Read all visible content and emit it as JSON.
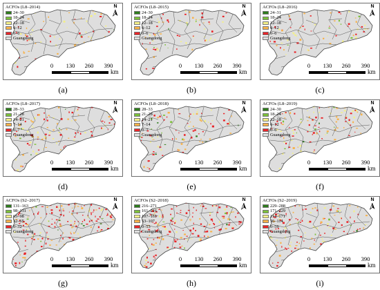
{
  "unit": "km",
  "scale_ticks": [
    "0",
    "130",
    "260",
    "390"
  ],
  "north_label": "N",
  "colors": {
    "class1": "#2e7d1c",
    "class2": "#7cc03a",
    "class3": "#f3ef88",
    "class4": "#f7b24a",
    "class5": "#e8262a",
    "guangdong": "#dedede",
    "border": "#555555"
  },
  "panels": [
    {
      "caption": "(a)",
      "title": "ACFOs (L8–2014)",
      "classes": [
        "24–30",
        "18–24",
        "12–18",
        "6–12",
        "0–6"
      ],
      "base": "Guangdong",
      "red_density": 0.3
    },
    {
      "caption": "(b)",
      "title": "ACFOs (L8–2015)",
      "classes": [
        "24–30",
        "18–24",
        "12–18",
        "6–12",
        "0–6"
      ],
      "base": "Guangdong",
      "red_density": 0.3
    },
    {
      "caption": "(c)",
      "title": "ACFOs (L8–2016)",
      "classes": [
        "24–31",
        "18–24",
        "12–18",
        "6–12",
        "0–6"
      ],
      "base": "Guangdong",
      "red_density": 0.3
    },
    {
      "caption": "(d)",
      "title": "ACFOs (L8–2017)",
      "classes": [
        "28–33",
        "21–28",
        "14–21",
        "7–14",
        "0–7"
      ],
      "base": "Guangdong",
      "red_density": 0.45
    },
    {
      "caption": "(e)",
      "title": "ACFOs (L8–2018)",
      "classes": [
        "28–33",
        "21–28",
        "14–21",
        "7–14",
        "0–7"
      ],
      "base": "Guangdong",
      "red_density": 0.4
    },
    {
      "caption": "(f)",
      "title": "ACFOs (L8–2019)",
      "classes": [
        "24–30",
        "18–24",
        "12–18",
        "6–12",
        "0–6"
      ],
      "base": "Guangdong",
      "red_density": 0.35
    },
    {
      "caption": "(g)",
      "title": "ACFOs (S2–2017)",
      "classes": [
        "131–163",
        "98–131",
        "65–98",
        "32–65",
        "0–32"
      ],
      "base": "Guangdong",
      "red_density": 0.75
    },
    {
      "caption": "(h)",
      "title": "ACFOs (S2–2018)",
      "classes": [
        "216–271",
        "161–216",
        "107–161",
        "53–107",
        "0–53"
      ],
      "base": "Guangdong",
      "red_density": 0.75
    },
    {
      "caption": "(i)",
      "title": "ACFOs (S2–2019)",
      "classes": [
        "229–288",
        "171–229",
        "114–171",
        "56–114",
        "0–56"
      ],
      "base": "Guangdong",
      "red_density": 0.6
    }
  ]
}
